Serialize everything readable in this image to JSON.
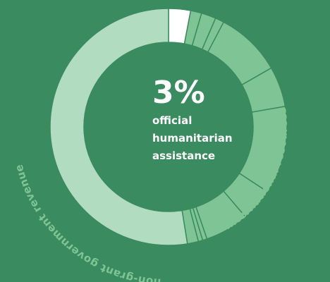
{
  "colors": {
    "background": "#3a8b5f",
    "highlight_segment": "#ffffff",
    "international_segment": "#7ec494",
    "government_segment": "#b2dcc0",
    "segment_divider": "#3a8b5f",
    "center_text": "#ffffff",
    "outer_label": "#7ec494"
  },
  "chart_data": {
    "type": "pie",
    "variant": "donut",
    "center": {
      "value": "3%",
      "label_lines": [
        "official",
        "humanitarian",
        "assistance"
      ]
    },
    "group_labels": {
      "international": "international resources",
      "government": "non-grant government revenue"
    },
    "slices": [
      {
        "group": "highlight",
        "value": 3
      },
      {
        "group": "international",
        "value": 1.5
      },
      {
        "group": "international",
        "value": 2
      },
      {
        "group": "international",
        "value": 1.2
      },
      {
        "group": "international",
        "value": 9
      },
      {
        "group": "international",
        "value": 5.5
      },
      {
        "group": "international",
        "value": 12
      },
      {
        "group": "international",
        "value": 4.5
      },
      {
        "group": "international",
        "value": 6
      },
      {
        "group": "international",
        "value": 0.6
      },
      {
        "group": "international",
        "value": 0.6
      },
      {
        "group": "international",
        "value": 1.5
      },
      {
        "group": "government",
        "value": 52.5
      }
    ]
  }
}
